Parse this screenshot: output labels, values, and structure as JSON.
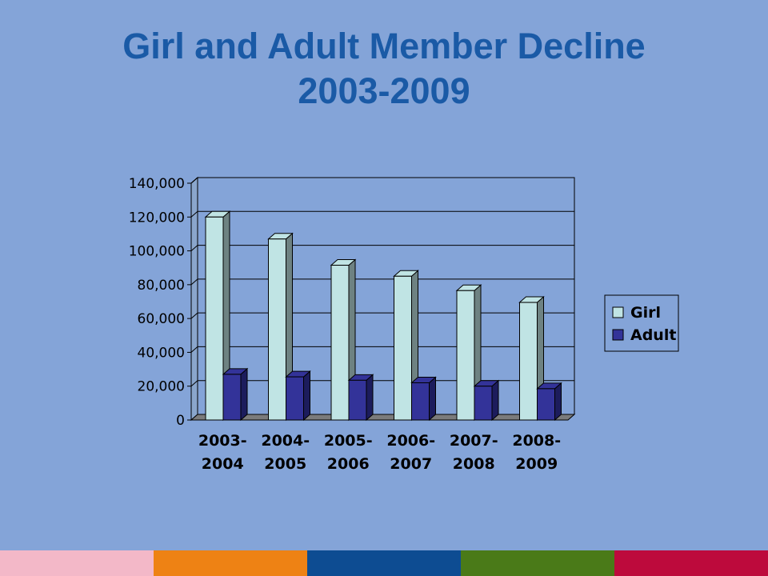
{
  "title": {
    "line1": "Girl and Adult Member Decline",
    "line2": "2003-2009"
  },
  "chart_data": {
    "type": "bar",
    "categories": [
      [
        "2003-",
        "2004"
      ],
      [
        "2004-",
        "2005"
      ],
      [
        "2005-",
        "2006"
      ],
      [
        "2006-",
        "2007"
      ],
      [
        "2007-",
        "2008"
      ],
      [
        "2008-",
        "2009"
      ]
    ],
    "series": [
      {
        "name": "Girl",
        "values": [
          120000,
          107000,
          91500,
          85000,
          76500,
          69500
        ],
        "color": "#c0e4e4",
        "side_color": "#6e8282"
      },
      {
        "name": "Adult",
        "values": [
          27000,
          25500,
          23500,
          22000,
          20000,
          18500
        ],
        "color": "#333399",
        "side_color": "#1c1c5c"
      }
    ],
    "yticks": [
      "0",
      "20,000",
      "40,000",
      "60,000",
      "80,000",
      "100,000",
      "120,000",
      "140,000"
    ],
    "ylim": [
      0,
      140000
    ],
    "legend_position": "right",
    "grid": true,
    "plot_background": "#84a4d8"
  },
  "bottom_bar_colors": [
    "#f3b8c8",
    "#ee8214",
    "#0d4c92",
    "#4a7a18",
    "#bd0a3c"
  ]
}
